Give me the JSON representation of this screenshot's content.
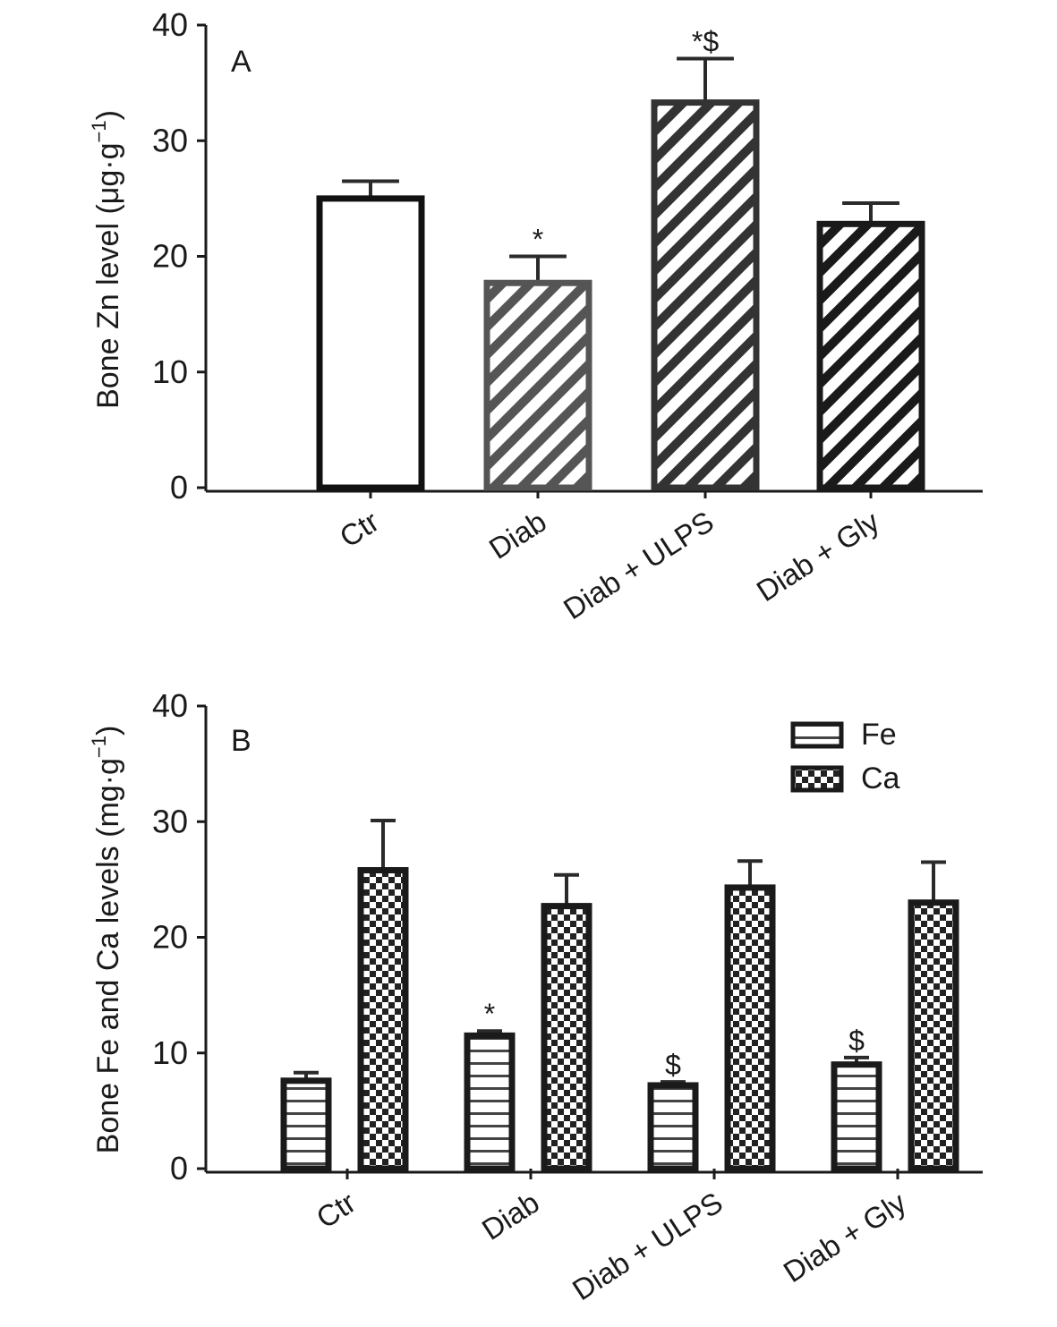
{
  "chart_data": [
    {
      "panel": "A",
      "type": "bar",
      "ylabel_main": "Bone Zn level (μg·g",
      "ylabel_sup": "−1",
      "ylabel_end": ")",
      "ylim": [
        0,
        40
      ],
      "yticks": [
        "0",
        "10",
        "20",
        "30",
        "40"
      ],
      "categories": [
        "Ctr",
        "Diab",
        "Diab + ULPS",
        "Diab + Gly"
      ],
      "values": [
        25.0,
        17.7,
        33.3,
        22.8
      ],
      "errors": [
        1.5,
        2.3,
        3.8,
        1.8
      ],
      "significance": [
        "",
        "*",
        "*$",
        ""
      ],
      "bar_styles": [
        {
          "pattern": "none",
          "color": "#111111"
        },
        {
          "pattern": "diagonal",
          "color": "#555555"
        },
        {
          "pattern": "diagonal",
          "color": "#333333"
        },
        {
          "pattern": "diagonal",
          "color": "#1a1a1a"
        }
      ]
    },
    {
      "panel": "B",
      "type": "bar",
      "ylabel_main": "Bone Fe and Ca levels (mg·g",
      "ylabel_sup": "−1",
      "ylabel_end": ")",
      "ylim": [
        0,
        40
      ],
      "yticks": [
        "0",
        "10",
        "20",
        "30",
        "40"
      ],
      "categories": [
        "Ctr",
        "Diab",
        "Diab + ULPS",
        "Diab + Gly"
      ],
      "legend_position": "top-right",
      "series": [
        {
          "name": "Fe",
          "pattern": "horizontal",
          "values": [
            7.6,
            11.5,
            7.2,
            9.0
          ],
          "errors": [
            0.7,
            0.4,
            0.3,
            0.6
          ],
          "significance": [
            "",
            "*",
            "$",
            "$"
          ]
        },
        {
          "name": "Ca",
          "pattern": "checker",
          "values": [
            25.8,
            22.7,
            24.3,
            23.0
          ],
          "errors": [
            4.3,
            2.7,
            2.3,
            3.5
          ],
          "significance": [
            "",
            "",
            "",
            ""
          ]
        }
      ]
    }
  ]
}
